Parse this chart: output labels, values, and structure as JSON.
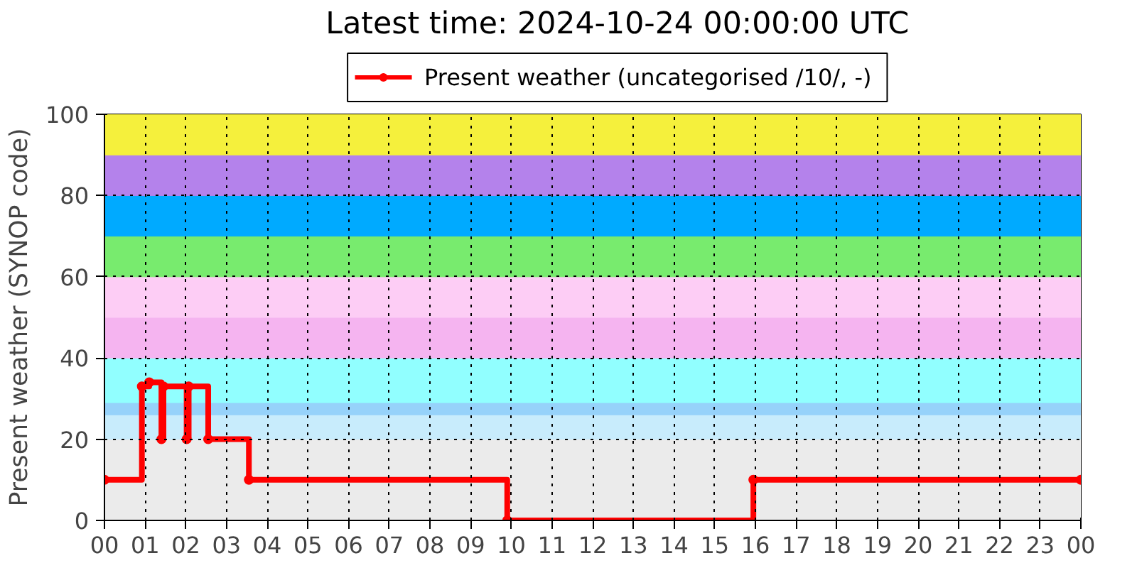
{
  "chart_data": {
    "type": "step",
    "title": "Latest time: 2024-10-24 00:00:00 UTC",
    "ylabel": "Present weather (SYNOP code)",
    "x": [
      0,
      0.92,
      1.1,
      1.4,
      1.45,
      2.02,
      2.07,
      2.55,
      3.55,
      9.9,
      15.95,
      24
    ],
    "series": [
      {
        "name": "Present weather (uncategorised /10/, -)",
        "color": "#ff0000",
        "values": [
          10,
          33,
          34,
          20,
          33,
          20,
          33,
          20,
          10,
          0,
          10,
          10
        ]
      }
    ],
    "xlim": [
      0,
      24
    ],
    "xticks": [
      {
        "value": 0,
        "label": "00"
      },
      {
        "value": 1,
        "label": "01"
      },
      {
        "value": 2,
        "label": "02"
      },
      {
        "value": 3,
        "label": "03"
      },
      {
        "value": 4,
        "label": "04"
      },
      {
        "value": 5,
        "label": "05"
      },
      {
        "value": 6,
        "label": "06"
      },
      {
        "value": 7,
        "label": "07"
      },
      {
        "value": 8,
        "label": "08"
      },
      {
        "value": 9,
        "label": "09"
      },
      {
        "value": 10,
        "label": "10"
      },
      {
        "value": 11,
        "label": "11"
      },
      {
        "value": 12,
        "label": "12"
      },
      {
        "value": 13,
        "label": "13"
      },
      {
        "value": 14,
        "label": "14"
      },
      {
        "value": 15,
        "label": "15"
      },
      {
        "value": 16,
        "label": "16"
      },
      {
        "value": 17,
        "label": "17"
      },
      {
        "value": 18,
        "label": "18"
      },
      {
        "value": 19,
        "label": "19"
      },
      {
        "value": 20,
        "label": "20"
      },
      {
        "value": 21,
        "label": "21"
      },
      {
        "value": 22,
        "label": "22"
      },
      {
        "value": 23,
        "label": "23"
      },
      {
        "value": 24,
        "label": "00"
      }
    ],
    "ylim": [
      0,
      100
    ],
    "yticks": [
      0,
      20,
      40,
      60,
      80,
      100
    ],
    "bands": [
      {
        "axis": "y",
        "from": 0,
        "to": 20,
        "color": "#ebebeb"
      },
      {
        "axis": "y",
        "from": 20,
        "to": 26,
        "color": "#c8ecfc"
      },
      {
        "axis": "y",
        "from": 26,
        "to": 29,
        "color": "#96d2fa"
      },
      {
        "axis": "y",
        "from": 29,
        "to": 40,
        "color": "#91ffff"
      },
      {
        "axis": "y",
        "from": 40,
        "to": 50,
        "color": "#f5b4f0"
      },
      {
        "axis": "y",
        "from": 50,
        "to": 60,
        "color": "#fdcdf5"
      },
      {
        "axis": "y",
        "from": 60,
        "to": 70,
        "color": "#78eb6e"
      },
      {
        "axis": "y",
        "from": 70,
        "to": 80,
        "color": "#00aaff"
      },
      {
        "axis": "y",
        "from": 80,
        "to": 90,
        "color": "#b482eb"
      },
      {
        "axis": "y",
        "from": 90,
        "to": 100,
        "color": "#f5f03c"
      }
    ],
    "grid": true,
    "legend": "top",
    "marker": "circle",
    "line_style": "solid"
  }
}
